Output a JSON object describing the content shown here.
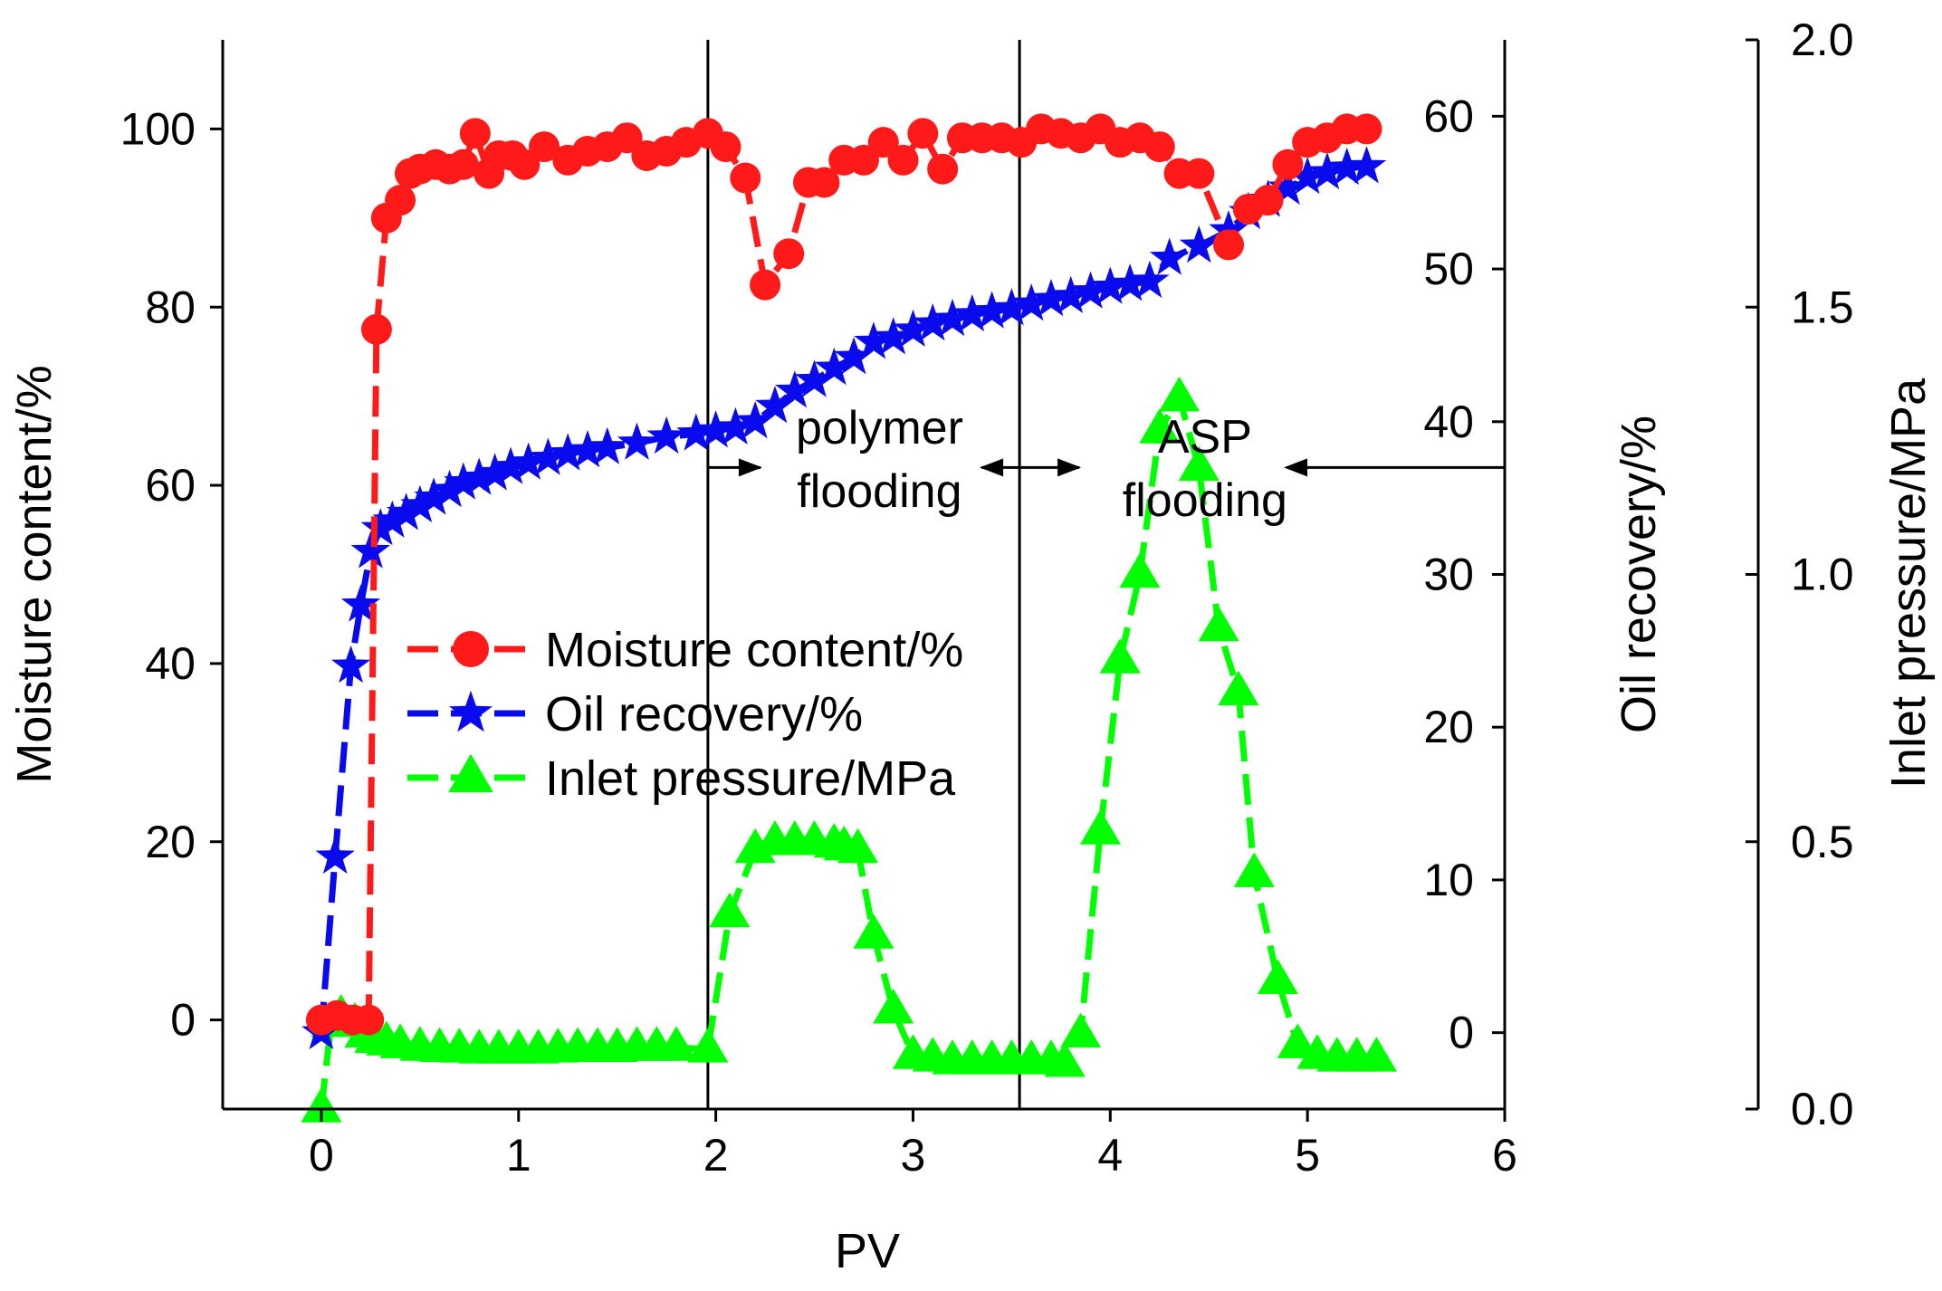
{
  "chart_data": {
    "type": "line",
    "x_axis": {
      "label": "PV",
      "range": [
        -0.5,
        6
      ],
      "ticks": [
        "0",
        "1",
        "2",
        "3",
        "4",
        "5",
        "6"
      ]
    },
    "y_axes": {
      "left": {
        "label": "Moisture content/%",
        "range": [
          -10,
          110
        ],
        "ticks": [
          "0",
          "20",
          "40",
          "60",
          "80",
          "100"
        ]
      },
      "right": {
        "label": "Oil recovery/%",
        "range": [
          -5,
          65
        ],
        "ticks": [
          "0",
          "10",
          "20",
          "30",
          "40",
          "50",
          "60"
        ]
      },
      "right_offset": {
        "label": "Inlet pressure/MPa",
        "range": [
          0.0,
          2.0
        ],
        "ticks": [
          "0.0",
          "0.5",
          "1.0",
          "1.5",
          "2.0"
        ]
      }
    },
    "phase_boundaries_pv": [
      1.96,
      3.54
    ],
    "annotations": [
      {
        "text_lines": [
          "polymer",
          "flooding"
        ],
        "x": 2.83,
        "y": 62
      },
      {
        "text_lines": [
          "ASP",
          "flooding"
        ],
        "x": 4.48,
        "y": 62
      }
    ],
    "series": [
      {
        "name": "Moisture content/%",
        "axis": "left",
        "color": "#ff1a1a",
        "marker": "circle",
        "points": [
          [
            0,
            0
          ],
          [
            0.08,
            0.5
          ],
          [
            0.16,
            0
          ],
          [
            0.24,
            0
          ],
          [
            0.28,
            77.5
          ],
          [
            0.33,
            90
          ],
          [
            0.4,
            92
          ],
          [
            0.45,
            95
          ],
          [
            0.5,
            95.5
          ],
          [
            0.58,
            96
          ],
          [
            0.65,
            95.5
          ],
          [
            0.72,
            96
          ],
          [
            0.78,
            99.5
          ],
          [
            0.85,
            95
          ],
          [
            0.9,
            97
          ],
          [
            0.97,
            97
          ],
          [
            1.03,
            96
          ],
          [
            1.13,
            98
          ],
          [
            1.25,
            96.5
          ],
          [
            1.35,
            97.5
          ],
          [
            1.45,
            98
          ],
          [
            1.55,
            99
          ],
          [
            1.65,
            97
          ],
          [
            1.75,
            97.5
          ],
          [
            1.85,
            98.5
          ],
          [
            1.96,
            99.5
          ],
          [
            2.05,
            98
          ],
          [
            2.15,
            94.5
          ],
          [
            2.25,
            82.5
          ],
          [
            2.37,
            86
          ],
          [
            2.47,
            94
          ],
          [
            2.55,
            94
          ],
          [
            2.65,
            96.5
          ],
          [
            2.75,
            96.5
          ],
          [
            2.85,
            98.5
          ],
          [
            2.95,
            96.5
          ],
          [
            3.05,
            99.5
          ],
          [
            3.15,
            95.5
          ],
          [
            3.25,
            99
          ],
          [
            3.35,
            99
          ],
          [
            3.45,
            99
          ],
          [
            3.55,
            98.5
          ],
          [
            3.65,
            100
          ],
          [
            3.75,
            99.5
          ],
          [
            3.85,
            99
          ],
          [
            3.95,
            100
          ],
          [
            4.05,
            98.5
          ],
          [
            4.15,
            99
          ],
          [
            4.25,
            98
          ],
          [
            4.35,
            95
          ],
          [
            4.45,
            95
          ],
          [
            4.6,
            87
          ],
          [
            4.7,
            91
          ],
          [
            4.8,
            92
          ],
          [
            4.9,
            96
          ],
          [
            5.0,
            98.5
          ],
          [
            5.1,
            99
          ],
          [
            5.2,
            100
          ],
          [
            5.3,
            100
          ]
        ]
      },
      {
        "name": "Oil recovery/%",
        "axis": "right",
        "color": "#0a0aee",
        "marker": "star",
        "points": [
          [
            0,
            0
          ],
          [
            0.07,
            11.5
          ],
          [
            0.15,
            24
          ],
          [
            0.2,
            28
          ],
          [
            0.25,
            31.5
          ],
          [
            0.3,
            33
          ],
          [
            0.36,
            33.5
          ],
          [
            0.43,
            34
          ],
          [
            0.5,
            34.5
          ],
          [
            0.57,
            35
          ],
          [
            0.65,
            35.5
          ],
          [
            0.72,
            36
          ],
          [
            0.8,
            36.3
          ],
          [
            0.88,
            36.6
          ],
          [
            0.96,
            37
          ],
          [
            1.05,
            37.3
          ],
          [
            1.15,
            37.6
          ],
          [
            1.25,
            37.9
          ],
          [
            1.35,
            38.1
          ],
          [
            1.45,
            38.3
          ],
          [
            1.6,
            38.6
          ],
          [
            1.75,
            39
          ],
          [
            1.9,
            39.2
          ],
          [
            2.0,
            39.4
          ],
          [
            2.1,
            39.6
          ],
          [
            2.2,
            40
          ],
          [
            2.3,
            41
          ],
          [
            2.4,
            42
          ],
          [
            2.5,
            42.7
          ],
          [
            2.6,
            43.5
          ],
          [
            2.7,
            44.2
          ],
          [
            2.8,
            45.2
          ],
          [
            2.9,
            45.5
          ],
          [
            3.0,
            46
          ],
          [
            3.1,
            46.4
          ],
          [
            3.2,
            46.7
          ],
          [
            3.3,
            47
          ],
          [
            3.4,
            47.2
          ],
          [
            3.5,
            47.4
          ],
          [
            3.6,
            47.7
          ],
          [
            3.7,
            48
          ],
          [
            3.8,
            48.2
          ],
          [
            3.9,
            48.5
          ],
          [
            4.0,
            48.8
          ],
          [
            4.1,
            49
          ],
          [
            4.2,
            49.2
          ],
          [
            4.3,
            50.7
          ],
          [
            4.45,
            51.5
          ],
          [
            4.6,
            52.5
          ],
          [
            4.7,
            53.7
          ],
          [
            4.8,
            54.5
          ],
          [
            4.9,
            55.3
          ],
          [
            5.0,
            56
          ],
          [
            5.1,
            56.3
          ],
          [
            5.2,
            56.6
          ],
          [
            5.3,
            56.7
          ]
        ]
      },
      {
        "name": "Inlet pressure/MPa",
        "axis": "right_offset",
        "color": "#00ff00",
        "marker": "triangle",
        "points": [
          [
            0,
            0.0
          ],
          [
            0.05,
            0.16
          ],
          [
            0.1,
            0.175
          ],
          [
            0.17,
            0.16
          ],
          [
            0.22,
            0.14
          ],
          [
            0.27,
            0.13
          ],
          [
            0.33,
            0.125
          ],
          [
            0.4,
            0.12
          ],
          [
            0.5,
            0.115
          ],
          [
            0.6,
            0.113
          ],
          [
            0.7,
            0.112
          ],
          [
            0.8,
            0.11
          ],
          [
            0.9,
            0.11
          ],
          [
            1.0,
            0.11
          ],
          [
            1.1,
            0.11
          ],
          [
            1.2,
            0.112
          ],
          [
            1.3,
            0.113
          ],
          [
            1.4,
            0.113
          ],
          [
            1.5,
            0.113
          ],
          [
            1.6,
            0.115
          ],
          [
            1.7,
            0.115
          ],
          [
            1.8,
            0.115
          ],
          [
            1.96,
            0.112
          ],
          [
            2.07,
            0.365
          ],
          [
            2.2,
            0.485
          ],
          [
            2.3,
            0.5
          ],
          [
            2.4,
            0.5
          ],
          [
            2.5,
            0.5
          ],
          [
            2.6,
            0.495
          ],
          [
            2.65,
            0.49
          ],
          [
            2.72,
            0.485
          ],
          [
            2.8,
            0.325
          ],
          [
            2.9,
            0.185
          ],
          [
            3.0,
            0.1
          ],
          [
            3.1,
            0.095
          ],
          [
            3.2,
            0.09
          ],
          [
            3.3,
            0.09
          ],
          [
            3.4,
            0.09
          ],
          [
            3.5,
            0.09
          ],
          [
            3.6,
            0.09
          ],
          [
            3.7,
            0.09
          ],
          [
            3.77,
            0.085
          ],
          [
            3.85,
            0.14
          ],
          [
            3.95,
            0.52
          ],
          [
            4.05,
            0.84
          ],
          [
            4.15,
            1.0
          ],
          [
            4.25,
            1.27
          ],
          [
            4.35,
            1.33
          ],
          [
            4.45,
            1.2
          ],
          [
            4.55,
            0.9
          ],
          [
            4.65,
            0.78
          ],
          [
            4.73,
            0.44
          ],
          [
            4.85,
            0.24
          ],
          [
            4.95,
            0.12
          ],
          [
            5.05,
            0.1
          ],
          [
            5.15,
            0.095
          ],
          [
            5.25,
            0.095
          ],
          [
            5.35,
            0.095
          ]
        ]
      }
    ]
  }
}
